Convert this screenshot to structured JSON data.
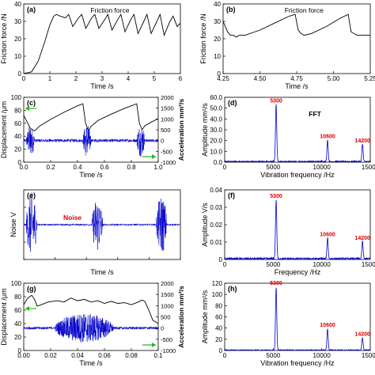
{
  "chart_data": [
    {
      "id": "a",
      "type": "line",
      "panel_label": "(a)",
      "annotation": "Friction force",
      "xlabel": "Time /s",
      "ylabel": "Friction force /N",
      "xlim": [
        0,
        6
      ],
      "ylim": [
        0,
        40
      ],
      "xticks": [
        "0",
        "1",
        "2",
        "3",
        "4",
        "5",
        "6"
      ],
      "yticks": [
        "0",
        "10",
        "20",
        "30",
        "40"
      ],
      "series": [
        {
          "color": "#000000",
          "x": [
            0,
            0.3,
            0.55,
            0.8,
            1.0,
            1.15,
            1.25,
            1.4,
            1.6,
            1.72,
            1.88,
            2.1,
            2.22,
            2.38,
            2.6,
            2.72,
            2.88,
            3.1,
            3.22,
            3.38,
            3.6,
            3.72,
            3.88,
            4.1,
            4.22,
            4.38,
            4.6,
            4.72,
            4.88,
            5.1,
            5.22,
            5.38,
            5.6,
            5.72,
            5.88,
            6.0
          ],
          "y": [
            0,
            1,
            7,
            18,
            28,
            33,
            34,
            33,
            32,
            34,
            27,
            32,
            34,
            26,
            32,
            34,
            26,
            31,
            34,
            25,
            31,
            34,
            24,
            31,
            34,
            23,
            30,
            34,
            23,
            30,
            34,
            22,
            30,
            33,
            27,
            29
          ]
        }
      ]
    },
    {
      "id": "b",
      "type": "line",
      "panel_label": "(b)",
      "annotation": "Friction force",
      "xlabel": "Time /s",
      "ylabel": "Friction force /N",
      "xlim": [
        4.25,
        5.25
      ],
      "ylim": [
        0,
        40
      ],
      "xticks": [
        "4.25",
        "4.50",
        "4.75",
        "5.00",
        "5.25"
      ],
      "yticks": [
        "0",
        "10",
        "20",
        "30",
        "40"
      ],
      "series": [
        {
          "color": "#000000",
          "x": [
            4.25,
            4.28,
            4.3,
            4.32,
            4.34,
            4.36,
            4.4,
            4.5,
            4.6,
            4.7,
            4.74,
            4.76,
            4.78,
            4.8,
            4.85,
            4.95,
            5.05,
            5.1,
            5.12,
            5.14,
            5.16,
            5.2,
            5.25
          ],
          "y": [
            30,
            24,
            22,
            22,
            21,
            22,
            22,
            25,
            29,
            33,
            34,
            25,
            23,
            22,
            23,
            27,
            32,
            34,
            24,
            23,
            22,
            22,
            22
          ]
        }
      ]
    },
    {
      "id": "c",
      "type": "line",
      "panel_label": "(c)",
      "xlabel": "Time /s",
      "ylabel": "Displacement /μm",
      "y2label": "Acceleration mm²/s",
      "xlim": [
        0,
        1.0
      ],
      "ylim": [
        0,
        100
      ],
      "y2lim": [
        -1000,
        2000
      ],
      "xticks": [
        "0.0",
        "0.2",
        "0.4",
        "0.6",
        "0.8",
        "1.0"
      ],
      "yticks": [
        "0",
        "20",
        "40",
        "60",
        "80",
        "100"
      ],
      "y2ticks": [
        "-1000",
        "-500",
        "0",
        "500",
        "1000",
        "1500",
        "2000"
      ],
      "series": [
        {
          "name": "Displacement",
          "color": "#000000",
          "x": [
            0,
            0.03,
            0.05,
            0.08,
            0.12,
            0.2,
            0.3,
            0.4,
            0.44,
            0.46,
            0.48,
            0.5,
            0.55,
            0.65,
            0.75,
            0.84,
            0.86,
            0.88,
            0.9,
            0.95,
            1.0
          ],
          "y": [
            72,
            60,
            52,
            48,
            56,
            66,
            77,
            87,
            90,
            60,
            48,
            55,
            64,
            74,
            83,
            90,
            60,
            50,
            56,
            62,
            67
          ]
        },
        {
          "name": "Acceleration",
          "color": "#0000cc",
          "baseline": 0,
          "noise": 70,
          "bursts": [
            {
              "center": 0.05,
              "width": 0.03,
              "amp": 650
            },
            {
              "center": 0.47,
              "width": 0.03,
              "amp": 700
            },
            {
              "center": 0.87,
              "width": 0.03,
              "amp": 680
            }
          ]
        }
      ]
    },
    {
      "id": "d",
      "type": "spectrum",
      "panel_label": "(d)",
      "annotation": "FFT",
      "xlabel": "Vibration frequency /Hz",
      "ylabel": "Amplitude mm²/s",
      "xlim": [
        0,
        15000
      ],
      "ylim": [
        0,
        60
      ],
      "xticks": [
        "0",
        "5000",
        "10000",
        "15000"
      ],
      "yticks": [
        "0.0",
        "10.0",
        "20.0",
        "30.0",
        "40.0",
        "50.0",
        "60.0"
      ],
      "series": [
        {
          "color": "#0000cc",
          "noise": 1.2,
          "peaks": [
            {
              "x": 5300,
              "y": 53,
              "label": "5300"
            },
            {
              "x": 10600,
              "y": 20,
              "label": "10600"
            },
            {
              "x": 14200,
              "y": 16,
              "label": "14200"
            }
          ]
        }
      ]
    },
    {
      "id": "e",
      "type": "line",
      "panel_label": "(e)",
      "annotation": "Noise",
      "xlabel": "Time /s",
      "ylabel": "Noise V",
      "xlim": [
        0,
        1.0
      ],
      "series": [
        {
          "color": "#0000cc",
          "baseline": 0,
          "noise": 0.03,
          "bursts": [
            {
              "center": 0.05,
              "width": 0.035,
              "amp": 1
            },
            {
              "center": 0.47,
              "width": 0.035,
              "amp": 0.85
            },
            {
              "center": 0.88,
              "width": 0.035,
              "amp": 0.9
            }
          ]
        }
      ]
    },
    {
      "id": "f",
      "type": "spectrum",
      "panel_label": "(f)",
      "xlabel": "Frequency /Hz",
      "ylabel": "Amplitude V/s",
      "xlim": [
        0,
        15000
      ],
      "ylim": [
        0,
        0.04
      ],
      "xticks": [
        "0",
        "5000",
        "10000",
        "15000"
      ],
      "yticks": [
        "0",
        "0.01",
        "0.02",
        "0.03",
        "0.04"
      ],
      "series": [
        {
          "color": "#0000cc",
          "noise": 0.001,
          "peaks": [
            {
              "x": 5300,
              "y": 0.034,
              "label": "5300"
            },
            {
              "x": 10600,
              "y": 0.012,
              "label": "10600"
            },
            {
              "x": 14200,
              "y": 0.01,
              "label": "14200"
            }
          ]
        }
      ]
    },
    {
      "id": "g",
      "type": "line",
      "panel_label": "(g)",
      "xlabel": "Time /s",
      "ylabel": "Displacement /μm",
      "y2label": "Acceleration mm²/s",
      "xlim": [
        0,
        0.1
      ],
      "ylim": [
        0,
        100
      ],
      "y2lim": [
        -1000,
        2000
      ],
      "xticks": [
        "0.00",
        "0.02",
        "0.04",
        "0.06",
        "0.08",
        "0.1"
      ],
      "yticks": [
        "0",
        "20",
        "40",
        "60",
        "80",
        "100"
      ],
      "y2ticks": [
        "-1000",
        "-500",
        "0",
        "500",
        "1000",
        "1500",
        "2000"
      ],
      "series": [
        {
          "name": "Displacement",
          "color": "#000000",
          "x": [
            0,
            0.003,
            0.006,
            0.008,
            0.01,
            0.013,
            0.018,
            0.025,
            0.03,
            0.035,
            0.04,
            0.045,
            0.05,
            0.055,
            0.06,
            0.065,
            0.07,
            0.075,
            0.08,
            0.085,
            0.088,
            0.09,
            0.093,
            0.096,
            0.1
          ],
          "y": [
            68,
            78,
            82,
            76,
            66,
            68,
            72,
            74,
            72,
            78,
            74,
            76,
            72,
            74,
            70,
            73,
            70,
            71,
            68,
            72,
            75,
            73,
            60,
            45,
            40
          ]
        },
        {
          "name": "Acceleration",
          "color": "#0000cc",
          "baseline": 0,
          "noise": 60,
          "bursts": [
            {
              "center": 0.045,
              "width": 0.022,
              "amp": 600
            }
          ]
        }
      ]
    },
    {
      "id": "h",
      "type": "spectrum",
      "panel_label": "(h)",
      "xlabel": "Vibration frequency /Hz",
      "ylabel": "Amplitude mm²/s",
      "xlim": [
        0,
        15000
      ],
      "ylim": [
        0,
        120
      ],
      "xticks": [
        "0",
        "5000",
        "10000",
        "15000"
      ],
      "yticks": [
        "0",
        "20",
        "40",
        "60",
        "80",
        "100",
        "120"
      ],
      "series": [
        {
          "color": "#0000cc",
          "noise": 1.5,
          "peaks": [
            {
              "x": 5300,
              "y": 113,
              "label": "5300"
            },
            {
              "x": 10600,
              "y": 38,
              "label": "10600"
            },
            {
              "x": 14200,
              "y": 22,
              "label": "14200"
            }
          ]
        }
      ]
    }
  ],
  "colors": {
    "peak_label": "#dd0000",
    "noise_label": "#dd0000",
    "arrow": "#22bb22",
    "trace_blue": "#0000cc"
  }
}
